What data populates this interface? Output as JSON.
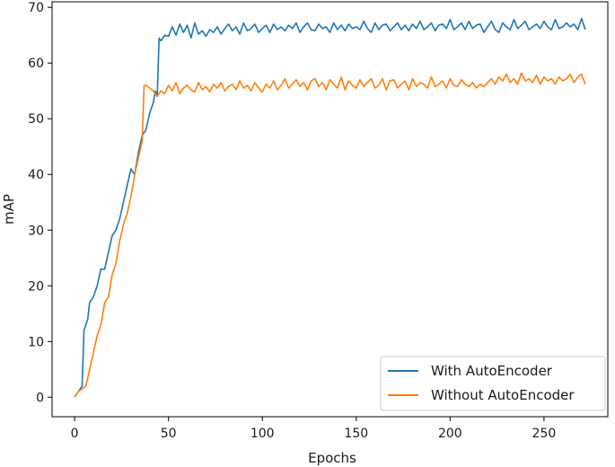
{
  "chart_data": {
    "type": "line",
    "title": "",
    "xlabel": "Epochs",
    "ylabel": "mAP",
    "xlim": [
      -12,
      284
    ],
    "ylim": [
      -3.5,
      71
    ],
    "xticks": [
      0,
      50,
      100,
      150,
      200,
      250
    ],
    "yticks": [
      0,
      10,
      20,
      30,
      40,
      50,
      60,
      70
    ],
    "grid": false,
    "legend_position": "lower-right",
    "colors": {
      "With AutoEncoder": "#1f77b4",
      "Without AutoEncoder": "#ff7f0e"
    },
    "series": [
      {
        "name": "With AutoEncoder",
        "x": [
          0,
          2,
          4,
          5,
          7,
          8,
          10,
          12,
          14,
          16,
          18,
          20,
          22,
          24,
          26,
          28,
          30,
          32,
          34,
          36,
          38,
          40,
          42,
          43,
          44,
          45,
          46,
          48,
          50,
          52,
          54,
          56,
          58,
          60,
          62,
          64,
          66,
          68,
          70,
          72,
          74,
          76,
          78,
          80,
          82,
          84,
          86,
          88,
          90,
          92,
          94,
          96,
          98,
          100,
          102,
          104,
          106,
          108,
          110,
          112,
          114,
          116,
          118,
          120,
          122,
          124,
          126,
          128,
          130,
          132,
          134,
          136,
          138,
          140,
          142,
          144,
          146,
          148,
          150,
          152,
          154,
          156,
          158,
          160,
          162,
          164,
          166,
          168,
          170,
          172,
          174,
          176,
          178,
          180,
          182,
          184,
          186,
          188,
          190,
          192,
          194,
          196,
          198,
          200,
          202,
          204,
          206,
          208,
          210,
          212,
          214,
          216,
          218,
          220,
          222,
          224,
          226,
          228,
          230,
          232,
          234,
          236,
          238,
          240,
          242,
          244,
          246,
          248,
          250,
          252,
          254,
          256,
          258,
          260,
          262,
          264,
          266,
          268,
          270,
          272
        ],
        "values": [
          0,
          1,
          2,
          12,
          14,
          17,
          18,
          20,
          23,
          23,
          26,
          29,
          30,
          32,
          35,
          38,
          41,
          40,
          44,
          47,
          48,
          51,
          53,
          55,
          54,
          64.5,
          64,
          65,
          64.8,
          66.5,
          65,
          67,
          65.5,
          66.8,
          64.5,
          67.2,
          65.2,
          65.8,
          64.8,
          66,
          65.5,
          66.5,
          65.2,
          66.2,
          67,
          65.8,
          66.5,
          65.2,
          67.2,
          65.8,
          66.2,
          67,
          65.5,
          66.2,
          66.8,
          65.5,
          67,
          66,
          66.5,
          65.8,
          66.8,
          66.2,
          67.2,
          65.5,
          66.5,
          67.2,
          66,
          65.8,
          67,
          66.2,
          66.5,
          65.5,
          67.2,
          66,
          66.8,
          65.8,
          67,
          66.2,
          66.5,
          66,
          67.5,
          66.2,
          65.5,
          67.2,
          66,
          66.8,
          67,
          65.8,
          66.5,
          67.2,
          66,
          66.8,
          65.8,
          67,
          66.2,
          67.5,
          66,
          66.5,
          67.2,
          65.8,
          66.8,
          67,
          66.2,
          67.8,
          66,
          66.5,
          67.2,
          66,
          67.5,
          66.2,
          66.8,
          67,
          65.5,
          66.5,
          67.5,
          66,
          65.5,
          67.2,
          66.5,
          66,
          67.8,
          66.2,
          66.8,
          67.5,
          66,
          66.5,
          67,
          66.2,
          67.5,
          66.5,
          66,
          67.8,
          66.2,
          66.5,
          67.2,
          66.5,
          67,
          66,
          68,
          66
        ]
      },
      {
        "name": "Without AutoEncoder",
        "x": [
          0,
          2,
          4,
          6,
          8,
          10,
          12,
          14,
          16,
          18,
          20,
          22,
          24,
          26,
          28,
          30,
          32,
          34,
          36,
          37,
          38,
          40,
          42,
          44,
          46,
          48,
          50,
          52,
          54,
          56,
          58,
          60,
          62,
          64,
          66,
          68,
          70,
          72,
          74,
          76,
          78,
          80,
          82,
          84,
          86,
          88,
          90,
          92,
          94,
          96,
          98,
          100,
          102,
          104,
          106,
          108,
          110,
          112,
          114,
          116,
          118,
          120,
          122,
          124,
          126,
          128,
          130,
          132,
          134,
          136,
          138,
          140,
          142,
          144,
          146,
          148,
          150,
          152,
          154,
          156,
          158,
          160,
          162,
          164,
          166,
          168,
          170,
          172,
          174,
          176,
          178,
          180,
          182,
          184,
          186,
          188,
          190,
          192,
          194,
          196,
          198,
          200,
          202,
          204,
          206,
          208,
          210,
          212,
          214,
          216,
          218,
          220,
          222,
          224,
          226,
          228,
          230,
          232,
          234,
          236,
          238,
          240,
          242,
          244,
          246,
          248,
          250,
          252,
          254,
          256,
          258,
          260,
          262,
          264,
          266,
          268,
          270,
          272
        ],
        "values": [
          0,
          1,
          1.5,
          2,
          5,
          8,
          11,
          13,
          17,
          18,
          22,
          24,
          28,
          31,
          33,
          36,
          40,
          43,
          46,
          56,
          56,
          55.5,
          55,
          54,
          55,
          54.5,
          56,
          55,
          56.5,
          54.5,
          55.5,
          56,
          55.2,
          54.8,
          56.5,
          55.2,
          55.8,
          54.8,
          56.2,
          55.5,
          56.5,
          55,
          55.8,
          56.2,
          55.2,
          56.8,
          55.5,
          56,
          55,
          56.5,
          55.5,
          54.8,
          56.2,
          55.5,
          56.8,
          55.2,
          56,
          57.2,
          55.5,
          56.2,
          57,
          55.8,
          56.5,
          55.2,
          56.8,
          57.2,
          55.8,
          56.5,
          55.2,
          57,
          56.2,
          55.5,
          57.5,
          55.2,
          56.8,
          56,
          55.5,
          57,
          55.8,
          56.5,
          57.2,
          55.5,
          56,
          57.2,
          55.2,
          56.8,
          57,
          55.5,
          56.2,
          56.8,
          55.2,
          57.2,
          55.8,
          56.5,
          56.2,
          55.5,
          57.5,
          55.8,
          56.2,
          56.8,
          55.5,
          57.2,
          56,
          55.8,
          57,
          56.2,
          55.8,
          56.5,
          55.5,
          56.2,
          55.8,
          56.5,
          57.2,
          56.2,
          57.5,
          56.8,
          58,
          56.5,
          57.2,
          56.2,
          58.2,
          56.8,
          57.2,
          56.5,
          57.8,
          56.2,
          57.5,
          56.8,
          57.2,
          56.2,
          57.5,
          56.8,
          57.2,
          58,
          56.5,
          57.5,
          58,
          56.2
        ]
      }
    ]
  }
}
